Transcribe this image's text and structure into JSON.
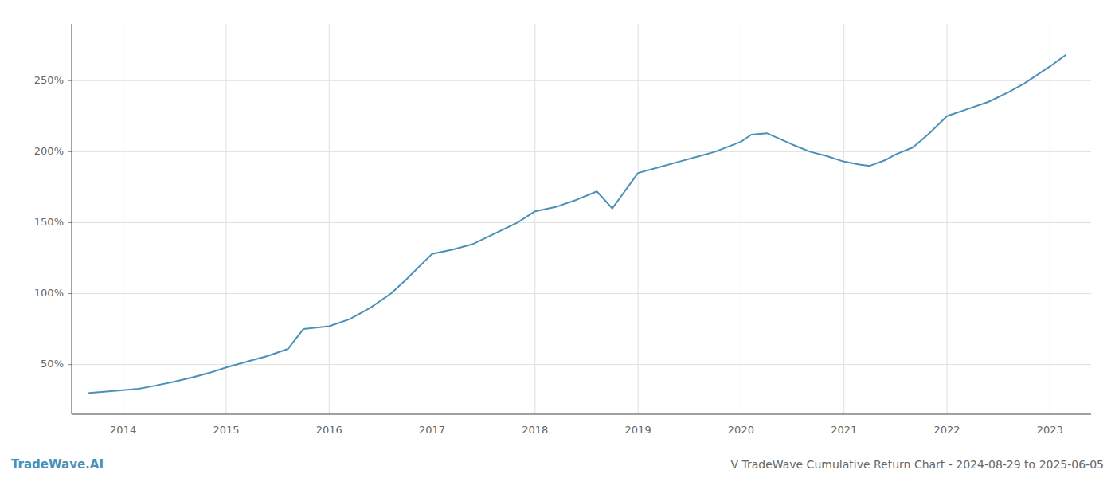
{
  "chart_data": {
    "type": "line",
    "title": "V TradeWave Cumulative Return Chart - 2024-08-29 to 2025-06-05",
    "annotations": [
      "TradeWave.AI"
    ],
    "color": "#4a90b8",
    "x": [
      2013.67,
      2014.0,
      2014.15,
      2014.3,
      2014.5,
      2014.67,
      2014.83,
      2015.0,
      2015.2,
      2015.4,
      2015.6,
      2015.75,
      2016.0,
      2016.2,
      2016.4,
      2016.6,
      2016.75,
      2017.0,
      2017.2,
      2017.4,
      2017.6,
      2017.83,
      2018.0,
      2018.2,
      2018.4,
      2018.6,
      2018.75,
      2019.0,
      2019.2,
      2019.4,
      2019.6,
      2019.75,
      2020.0,
      2020.1,
      2020.25,
      2020.5,
      2020.67,
      2020.83,
      2021.0,
      2021.15,
      2021.25,
      2021.4,
      2021.5,
      2021.67,
      2021.83,
      2022.0,
      2022.2,
      2022.4,
      2022.6,
      2022.75,
      2023.0,
      2023.15
    ],
    "values": [
      30,
      32,
      33,
      35,
      38,
      41,
      44,
      48,
      52,
      56,
      61,
      75,
      77,
      82,
      90,
      100,
      110,
      128,
      131,
      135,
      142,
      150,
      158,
      161,
      166,
      172,
      160,
      185,
      189,
      193,
      197,
      200,
      207,
      212,
      213,
      205,
      200,
      197,
      193,
      191,
      190,
      194,
      198,
      203,
      213,
      225,
      230,
      235,
      242,
      248,
      260,
      268
    ],
    "xlim": [
      2013.5,
      2023.4
    ],
    "xticks": [
      2014,
      2015,
      2016,
      2017,
      2018,
      2019,
      2020,
      2021,
      2022,
      2023
    ],
    "ylim": [
      15,
      290
    ],
    "yticks": [
      {
        "value": 50,
        "label": "50%"
      },
      {
        "value": 100,
        "label": "100%"
      },
      {
        "value": 150,
        "label": "150%"
      },
      {
        "value": 200,
        "label": "200%"
      },
      {
        "value": 250,
        "label": "250%"
      }
    ],
    "grid": true
  }
}
